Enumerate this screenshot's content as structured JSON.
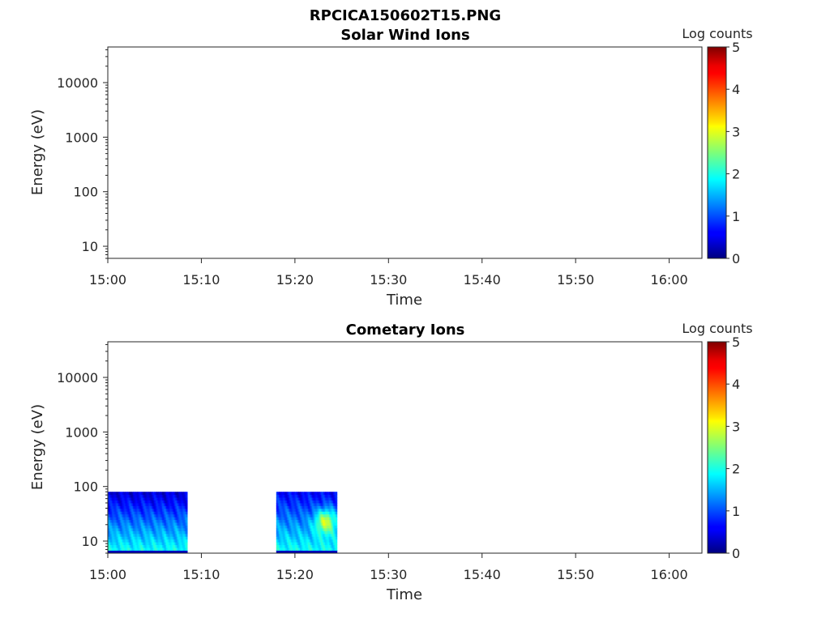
{
  "figure": {
    "title": "RPCICA150602T15.PNG"
  },
  "chart_data": [
    {
      "type": "heatmap",
      "title": "Solar Wind Ions",
      "xlabel": "Time",
      "ylabel": "Energy (eV)",
      "x_tick_labels": [
        "15:00",
        "15:10",
        "15:20",
        "15:30",
        "15:40",
        "15:50",
        "16:00"
      ],
      "x_ticks_minutes": [
        0,
        10,
        20,
        30,
        40,
        50,
        60
      ],
      "xlim_minutes": [
        0,
        63.5
      ],
      "y_scale": "log",
      "ylim": [
        6,
        45000
      ],
      "y_tick_labels": [
        "10",
        "100",
        "1000",
        "10000"
      ],
      "y_ticks": [
        10,
        100,
        1000,
        10000
      ],
      "colorbar": {
        "label": "Log counts",
        "min": 0,
        "max": 5,
        "tick_labels": [
          "0",
          "1",
          "2",
          "3",
          "4",
          "5"
        ],
        "colormap": "jet"
      },
      "blocks": []
    },
    {
      "type": "heatmap",
      "title": "Cometary Ions",
      "xlabel": "Time",
      "ylabel": "Energy (eV)",
      "x_tick_labels": [
        "15:00",
        "15:10",
        "15:20",
        "15:30",
        "15:40",
        "15:50",
        "16:00"
      ],
      "x_ticks_minutes": [
        0,
        10,
        20,
        30,
        40,
        50,
        60
      ],
      "xlim_minutes": [
        0,
        63.5
      ],
      "y_scale": "log",
      "ylim": [
        6,
        45000
      ],
      "y_tick_labels": [
        "10",
        "100",
        "1000",
        "10000"
      ],
      "y_ticks": [
        10,
        100,
        1000,
        10000
      ],
      "colorbar": {
        "label": "Log counts",
        "min": 0,
        "max": 5,
        "tick_labels": [
          "0",
          "1",
          "2",
          "3",
          "4",
          "5"
        ],
        "colormap": "jet"
      },
      "blocks": [
        {
          "start_minute": 0,
          "end_minute": 8.5,
          "energy_min": 6,
          "energy_max": 80,
          "log_counts_low_energy": 2.0,
          "log_counts_high_energy": 0.4,
          "peak": null
        },
        {
          "start_minute": 18,
          "end_minute": 24.5,
          "energy_min": 6,
          "energy_max": 80,
          "log_counts_low_energy": 2.0,
          "log_counts_high_energy": 0.6,
          "peak": {
            "minute": 23.2,
            "energy": 22,
            "log_counts": 3.6
          }
        }
      ]
    }
  ]
}
